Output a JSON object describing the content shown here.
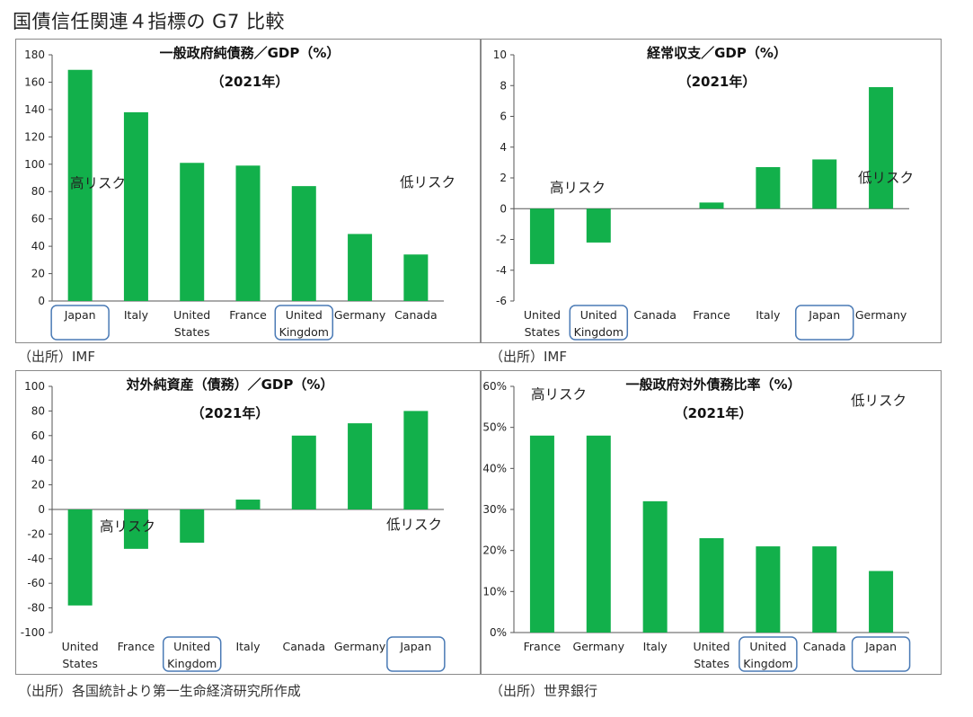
{
  "page": {
    "title": "国債信任関連４指標の G7 比較"
  },
  "colors": {
    "bar": "#12b04b",
    "highlight_box": "#4a7ab5",
    "axis": "#555555",
    "frame": "#8a8a8a"
  },
  "chart_data": [
    {
      "type": "bar",
      "title": "一般政府純債務／GDP（%）",
      "subtitle": "（2021年）",
      "categories": [
        "Japan",
        "Italy",
        "United States",
        "France",
        "United Kingdom",
        "Germany",
        "Canada"
      ],
      "values": [
        169,
        138,
        101,
        99,
        84,
        49,
        34
      ],
      "ylim": [
        0,
        180
      ],
      "yticks": [
        0,
        20,
        40,
        60,
        80,
        100,
        120,
        140,
        160,
        180
      ],
      "ytick_format": "num",
      "highlighted": [
        "Japan",
        "United Kingdom"
      ],
      "annotations": [
        "高リスク",
        "低リスク"
      ],
      "source": "（出所）IMF"
    },
    {
      "type": "bar",
      "title": "経常収支／GDP（%）",
      "subtitle": "（2021年）",
      "categories": [
        "United States",
        "United Kingdom",
        "Canada",
        "France",
        "Italy",
        "Japan",
        "Germany"
      ],
      "values": [
        -3.6,
        -2.2,
        0.0,
        0.4,
        2.7,
        3.2,
        7.9
      ],
      "ylim": [
        -6,
        10
      ],
      "yticks": [
        -6,
        -4,
        -2,
        0,
        2,
        4,
        6,
        8,
        10
      ],
      "ytick_format": "num",
      "highlighted": [
        "United Kingdom",
        "Japan"
      ],
      "annotations": [
        "高リスク",
        "低リスク"
      ],
      "source": "（出所）IMF"
    },
    {
      "type": "bar",
      "title": "対外純資産（債務）／GDP（%）",
      "subtitle": "（2021年）",
      "categories": [
        "United States",
        "France",
        "United Kingdom",
        "Italy",
        "Canada",
        "Germany",
        "Japan"
      ],
      "values": [
        -78,
        -32,
        -27,
        8,
        60,
        70,
        80
      ],
      "ylim": [
        -100,
        100
      ],
      "yticks": [
        -100,
        -80,
        -60,
        -40,
        -20,
        0,
        20,
        40,
        60,
        80,
        100
      ],
      "ytick_format": "num",
      "highlighted": [
        "United Kingdom",
        "Japan"
      ],
      "annotations": [
        "高リスク",
        "低リスク"
      ],
      "source": "（出所）各国統計より第一生命経済研究所作成"
    },
    {
      "type": "bar",
      "title": "一般政府対外債務比率（%）",
      "subtitle": "（2021年）",
      "categories": [
        "France",
        "Germany",
        "Italy",
        "United States",
        "United Kingdom",
        "Canada",
        "Japan"
      ],
      "values": [
        0.48,
        0.48,
        0.32,
        0.23,
        0.21,
        0.21,
        0.15
      ],
      "ylim": [
        0,
        0.6
      ],
      "yticks": [
        0,
        0.1,
        0.2,
        0.3,
        0.4,
        0.5,
        0.6
      ],
      "ytick_format": "pct",
      "highlighted": [
        "United Kingdom",
        "Japan"
      ],
      "annotations": [
        "高リスク",
        "低リスク"
      ],
      "source": "（出所）世界銀行"
    }
  ]
}
